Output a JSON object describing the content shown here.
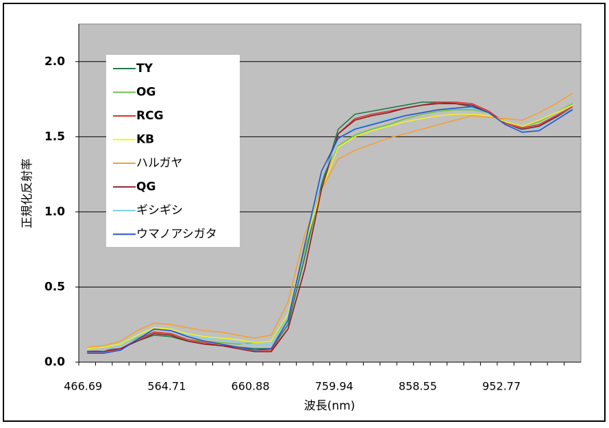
{
  "chart_data": {
    "type": "line",
    "y_label": "正規化反射率",
    "x_label": "波長(nm)",
    "categories": [
      "466.69",
      null,
      null,
      null,
      null,
      "564.71",
      null,
      null,
      null,
      null,
      "660.88",
      null,
      null,
      null,
      null,
      "759.94",
      null,
      null,
      null,
      null,
      "858.55",
      null,
      null,
      null,
      null,
      "952.77",
      null,
      null,
      null,
      null
    ],
    "ylim": [
      0,
      2.25
    ],
    "yticks": [
      {
        "value": 0,
        "label": "0.0"
      },
      0.5,
      {
        "value": 1,
        "label": "1.0"
      },
      1.5,
      {
        "value": 2,
        "label": "2.0"
      }
    ],
    "grid": true,
    "legend": "upper left",
    "background": "#c0c0c0",
    "series": [
      {
        "name": "TY",
        "color": "#1e7a4a",
        "values": [
          0.07,
          0.08,
          0.09,
          0.14,
          0.18,
          0.17,
          0.14,
          0.12,
          0.11,
          0.1,
          0.09,
          0.09,
          0.25,
          0.7,
          1.18,
          1.55,
          1.65,
          1.67,
          1.69,
          1.71,
          1.73,
          1.73,
          1.72,
          1.7,
          1.66,
          1.58,
          1.55,
          1.57,
          1.63,
          1.68
        ]
      },
      {
        "name": "OG",
        "color": "#66c244",
        "values": [
          0.09,
          0.1,
          0.12,
          0.16,
          0.2,
          0.19,
          0.15,
          0.14,
          0.13,
          0.12,
          0.13,
          0.14,
          0.3,
          0.75,
          1.15,
          1.44,
          1.51,
          1.55,
          1.58,
          1.62,
          1.65,
          1.67,
          1.68,
          1.68,
          1.66,
          1.6,
          1.57,
          1.6,
          1.66,
          1.72
        ]
      },
      {
        "name": "RCG",
        "color": "#e0302a",
        "values": [
          0.07,
          0.08,
          0.09,
          0.15,
          0.2,
          0.19,
          0.15,
          0.13,
          0.11,
          0.1,
          0.08,
          0.08,
          0.22,
          0.62,
          1.15,
          1.52,
          1.62,
          1.65,
          1.67,
          1.69,
          1.71,
          1.73,
          1.73,
          1.72,
          1.67,
          1.59,
          1.56,
          1.58,
          1.64,
          1.7
        ]
      },
      {
        "name": "KB",
        "color": "#f2f21e",
        "values": [
          0.09,
          0.1,
          0.12,
          0.18,
          0.23,
          0.22,
          0.19,
          0.17,
          0.16,
          0.15,
          0.13,
          0.14,
          0.32,
          0.78,
          1.15,
          1.43,
          1.5,
          1.54,
          1.57,
          1.6,
          1.62,
          1.64,
          1.65,
          1.65,
          1.64,
          1.6,
          1.57,
          1.61,
          1.66,
          1.71
        ]
      },
      {
        "name": "ハルガヤ",
        "color": "#f5a032",
        "values": [
          0.1,
          0.11,
          0.14,
          0.21,
          0.26,
          0.25,
          0.23,
          0.21,
          0.2,
          0.18,
          0.16,
          0.18,
          0.4,
          0.85,
          1.15,
          1.35,
          1.41,
          1.45,
          1.49,
          1.52,
          1.55,
          1.58,
          1.61,
          1.64,
          1.63,
          1.62,
          1.61,
          1.66,
          1.72,
          1.79
        ]
      },
      {
        "name": "QG",
        "color": "#8a1e28",
        "values": [
          0.07,
          0.07,
          0.09,
          0.14,
          0.19,
          0.18,
          0.14,
          0.12,
          0.11,
          0.09,
          0.07,
          0.07,
          0.22,
          0.62,
          1.15,
          1.52,
          1.61,
          1.64,
          1.66,
          1.69,
          1.71,
          1.72,
          1.72,
          1.71,
          1.66,
          1.58,
          1.55,
          1.57,
          1.63,
          1.69
        ]
      },
      {
        "name": "ギシギシ",
        "color": "#7ed2e6",
        "values": [
          0.08,
          0.08,
          0.11,
          0.17,
          0.22,
          0.21,
          0.18,
          0.16,
          0.15,
          0.13,
          0.11,
          0.12,
          0.3,
          0.78,
          1.22,
          1.48,
          1.56,
          1.59,
          1.62,
          1.64,
          1.66,
          1.68,
          1.69,
          1.69,
          1.66,
          1.58,
          1.54,
          1.56,
          1.62,
          1.69
        ]
      },
      {
        "name": "ウマノアシガタ",
        "color": "#2a4ec8",
        "values": [
          0.06,
          0.06,
          0.08,
          0.15,
          0.22,
          0.21,
          0.17,
          0.14,
          0.12,
          0.1,
          0.08,
          0.09,
          0.28,
          0.78,
          1.27,
          1.49,
          1.55,
          1.58,
          1.61,
          1.64,
          1.66,
          1.68,
          1.69,
          1.7,
          1.66,
          1.58,
          1.53,
          1.54,
          1.61,
          1.68
        ]
      }
    ]
  }
}
